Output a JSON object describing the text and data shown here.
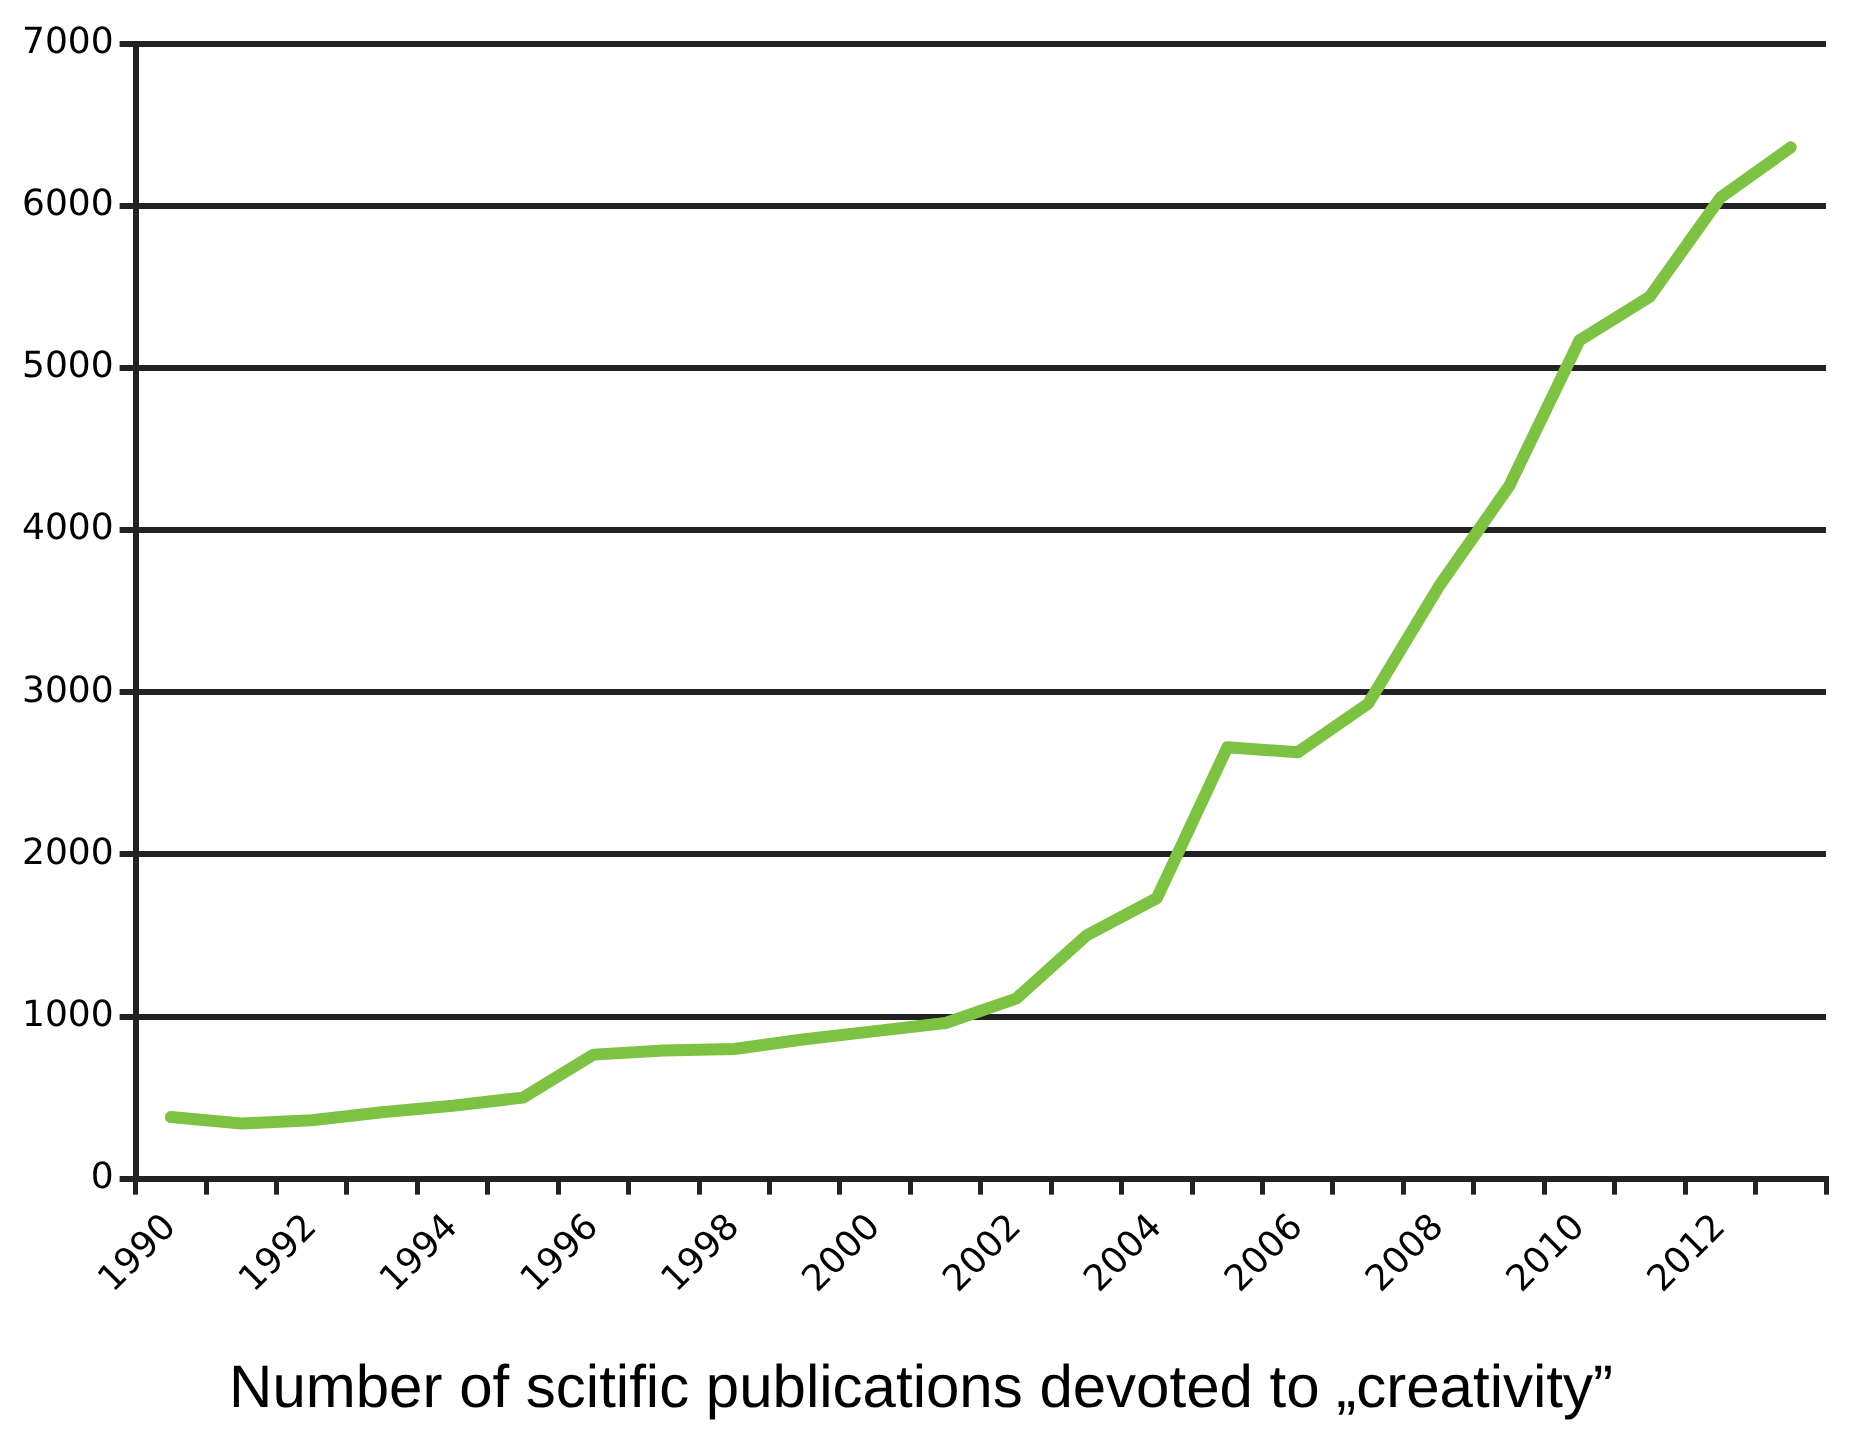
{
  "chart_data": {
    "type": "line",
    "title": "Number of scitific publications devoted to „creativity”",
    "categories": [
      "1990",
      null,
      "1992",
      null,
      "1994",
      null,
      "1996",
      null,
      "1998",
      null,
      "2000",
      null,
      "2002",
      null,
      "2004",
      null,
      "2006",
      null,
      "2008",
      null,
      "2010",
      null,
      "2012",
      null
    ],
    "series": [
      {
        "color": "#7dc242",
        "values": [
          380,
          340,
          360,
          410,
          450,
          500,
          765,
          790,
          800,
          860,
          910,
          960,
          1110,
          1500,
          1730,
          2660,
          2630,
          2930,
          3650,
          4270,
          5170,
          5440,
          6050,
          6360
        ]
      }
    ],
    "ylim": [
      0,
      7000
    ],
    "yticks": [
      0,
      1000,
      2000,
      3000,
      4000,
      5000,
      6000,
      7000
    ],
    "grid": "y",
    "legend": false,
    "marker": "none",
    "line_style": "solid"
  }
}
